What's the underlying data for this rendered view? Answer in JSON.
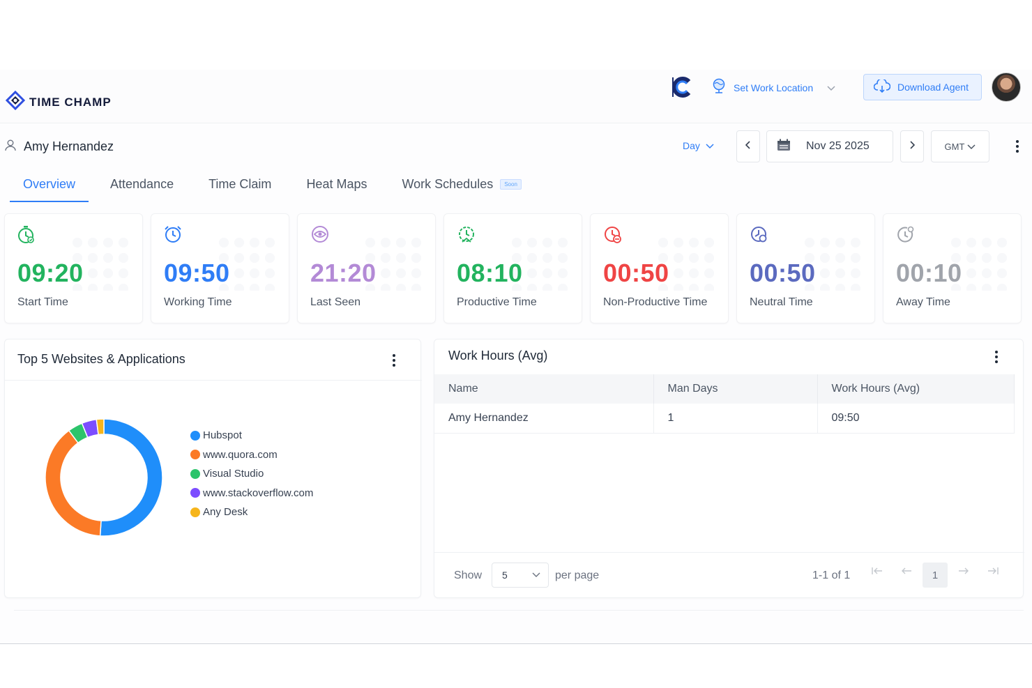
{
  "brand": {
    "name": "TIME CHAMP"
  },
  "topbar": {
    "set_location": "Set Work Location",
    "download": "Download Agent"
  },
  "user": {
    "name": "Amy Hernandez"
  },
  "controls": {
    "period": "Day",
    "date": "Nov 25 2025",
    "timezone": "GMT"
  },
  "tabs": [
    {
      "label": "Overview",
      "active": true
    },
    {
      "label": "Attendance"
    },
    {
      "label": "Time Claim"
    },
    {
      "label": "Heat Maps"
    },
    {
      "label": "Work Schedules",
      "badge": "Soon"
    }
  ],
  "stats": [
    {
      "value": "09:20",
      "label": "Start Time",
      "color": "#22b35e"
    },
    {
      "value": "09:50",
      "label": "Working Time",
      "color": "#2f7df6"
    },
    {
      "value": "21:20",
      "label": "Last Seen",
      "color": "#b38ad6"
    },
    {
      "value": "08:10",
      "label": "Productive Time",
      "color": "#22b35e"
    },
    {
      "value": "00:50",
      "label": "Non-Productive Time",
      "color": "#ef4444"
    },
    {
      "value": "00:50",
      "label": "Neutral Time",
      "color": "#5b6abf"
    },
    {
      "value": "00:10",
      "label": "Away Time",
      "color": "#a0a4ab"
    }
  ],
  "top_apps": {
    "title": "Top 5 Websites & Applications",
    "items": [
      {
        "name": "Hubspot",
        "share": 50,
        "color": "#1f8efa"
      },
      {
        "name": "www.quora.com",
        "share": 38,
        "color": "#fb7a26"
      },
      {
        "name": "Visual Studio",
        "share": 4,
        "color": "#2cc46b"
      },
      {
        "name": "www.stackoverflow.com",
        "share": 4,
        "color": "#7c4dff"
      },
      {
        "name": "Any Desk",
        "share": 2,
        "color": "#f6b51b"
      }
    ]
  },
  "work_hours": {
    "title": "Work Hours (Avg)",
    "columns": [
      "Name",
      "Man Days",
      "Work Hours (Avg)"
    ],
    "rows": [
      [
        "Amy Hernandez",
        "1",
        "09:50"
      ]
    ],
    "pager": {
      "show": "Show",
      "per_page_value": "5",
      "per_page_label": "per page",
      "range": "1-1 of 1",
      "current": "1"
    }
  }
}
